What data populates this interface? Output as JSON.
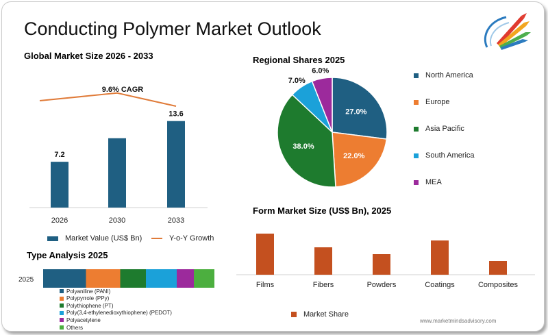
{
  "title": "Conducting Polymer Market Outlook",
  "watermark": "www.marketmindsadvisory.com",
  "colors": {
    "bar_blue": "#1f5f82",
    "growth_line": "#e07b39",
    "form_bar": "#c4501f"
  },
  "chart_data": [
    {
      "id": "global",
      "type": "bar",
      "title": "Global Market Size 2026 - 2033",
      "categories": [
        "2026",
        "2030",
        "2033"
      ],
      "values": [
        7.2,
        null,
        13.6
      ],
      "value_labels": [
        "7.2",
        "",
        "13.6"
      ],
      "estimated_values": [
        7.2,
        10.9,
        13.6
      ],
      "ylim": [
        0,
        14
      ],
      "series_name": "Market Value (US$ Bn)",
      "line_series_name": "Y-o-Y Growth",
      "line_values": [
        0.6,
        0.67,
        0.55
      ],
      "cagr_label": "9.6% CAGR"
    },
    {
      "id": "regional",
      "type": "pie",
      "title": "Regional Shares 2025",
      "labels": [
        "North America",
        "Europe",
        "Asia Pacific",
        "South America",
        "MEA"
      ],
      "values": [
        27.0,
        22.0,
        38.0,
        7.0,
        6.0
      ],
      "value_labels": [
        "27.0%",
        "22.0%",
        "38.0%",
        "7.0%",
        "6.0%"
      ],
      "colors": [
        "#1f5f82",
        "#ed7d31",
        "#1e7b2e",
        "#1ba1d9",
        "#9c2a9c"
      ],
      "legend": "right"
    },
    {
      "id": "form",
      "type": "bar",
      "title": "Form Market Size (US$ Bn), 2025",
      "categories": [
        "Films",
        "Fibers",
        "Powders",
        "Coatings",
        "Composites"
      ],
      "values": [
        3.0,
        2.0,
        1.5,
        2.5,
        1.0
      ],
      "series_name": "Market Share",
      "ylim": [
        0,
        3.5
      ]
    },
    {
      "id": "type",
      "type": "bar",
      "title": "Type Analysis 2025",
      "stacked": true,
      "category": "2025",
      "series": [
        {
          "name": "Polyaniline (PANI)",
          "value": 25,
          "color": "#1f5f82"
        },
        {
          "name": "Polypyrrole (PPy)",
          "value": 20,
          "color": "#ed7d31"
        },
        {
          "name": "Polythiophene (PT)",
          "value": 15,
          "color": "#1e7b2e"
        },
        {
          "name": "Poly(3,4-ethylenedioxythiophene) (PEDOT)",
          "value": 18,
          "color": "#1ba1d9"
        },
        {
          "name": "Polyacetylene",
          "value": 10,
          "color": "#9c2a9c"
        },
        {
          "name": "Others",
          "value": 12,
          "color": "#4caf3f"
        }
      ]
    }
  ]
}
